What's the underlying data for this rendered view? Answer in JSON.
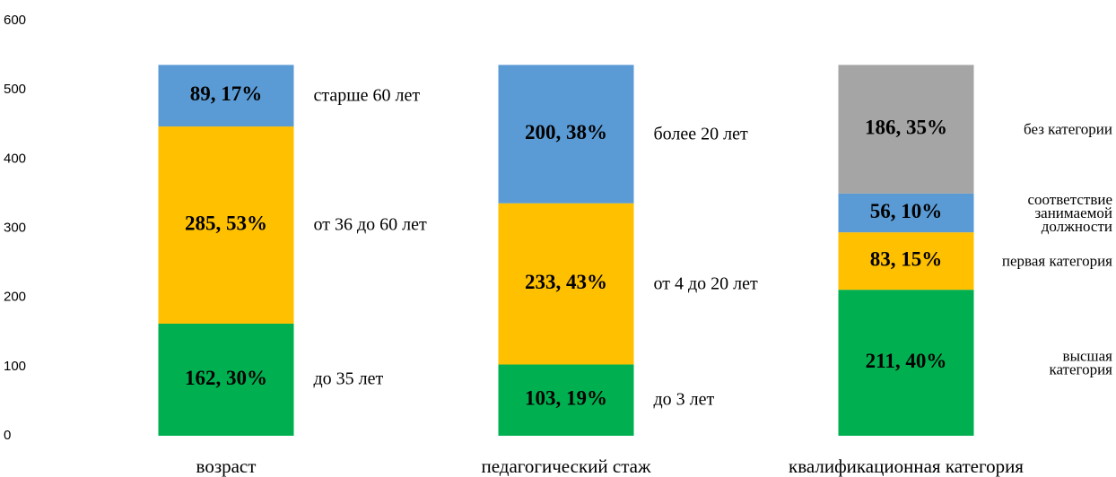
{
  "chart_data": {
    "type": "stacked_bar",
    "categories": [
      "возраст",
      "педагогический стаж",
      "квалификационная категория"
    ],
    "ylim": [
      0,
      600
    ],
    "yticks": [
      0,
      100,
      200,
      300,
      400,
      500,
      600
    ],
    "bars": [
      {
        "segments": [
          {
            "name": "до 35 лет",
            "value": 162,
            "value_label": "162, 30%",
            "color": "#00b050"
          },
          {
            "name": "от 36 до 60 лет",
            "value": 285,
            "value_label": "285, 53%",
            "color": "#ffc000"
          },
          {
            "name": "старше 60 лет",
            "value": 89,
            "value_label": "89, 17%",
            "color": "#5b9bd5"
          }
        ]
      },
      {
        "segments": [
          {
            "name": "до 3 лет",
            "value": 103,
            "value_label": "103, 19%",
            "color": "#00b050"
          },
          {
            "name": "от 4 до 20 лет",
            "value": 233,
            "value_label": "233, 43%",
            "color": "#ffc000"
          },
          {
            "name": "более 20 лет",
            "value": 200,
            "value_label": "200, 38%",
            "color": "#5b9bd5"
          }
        ]
      },
      {
        "segments": [
          {
            "name": "высшая категория",
            "value": 211,
            "value_label": "211, 40%",
            "color": "#00b050"
          },
          {
            "name": "первая категория",
            "value": 83,
            "value_label": "83, 15%",
            "color": "#ffc000"
          },
          {
            "name": "соответствие занимаемой должности",
            "value": 56,
            "value_label": "56, 10%",
            "color": "#5b9bd5"
          },
          {
            "name": "без категории",
            "value": 186,
            "value_label": "186, 35%",
            "color": "#a5a5a5"
          }
        ]
      }
    ]
  }
}
